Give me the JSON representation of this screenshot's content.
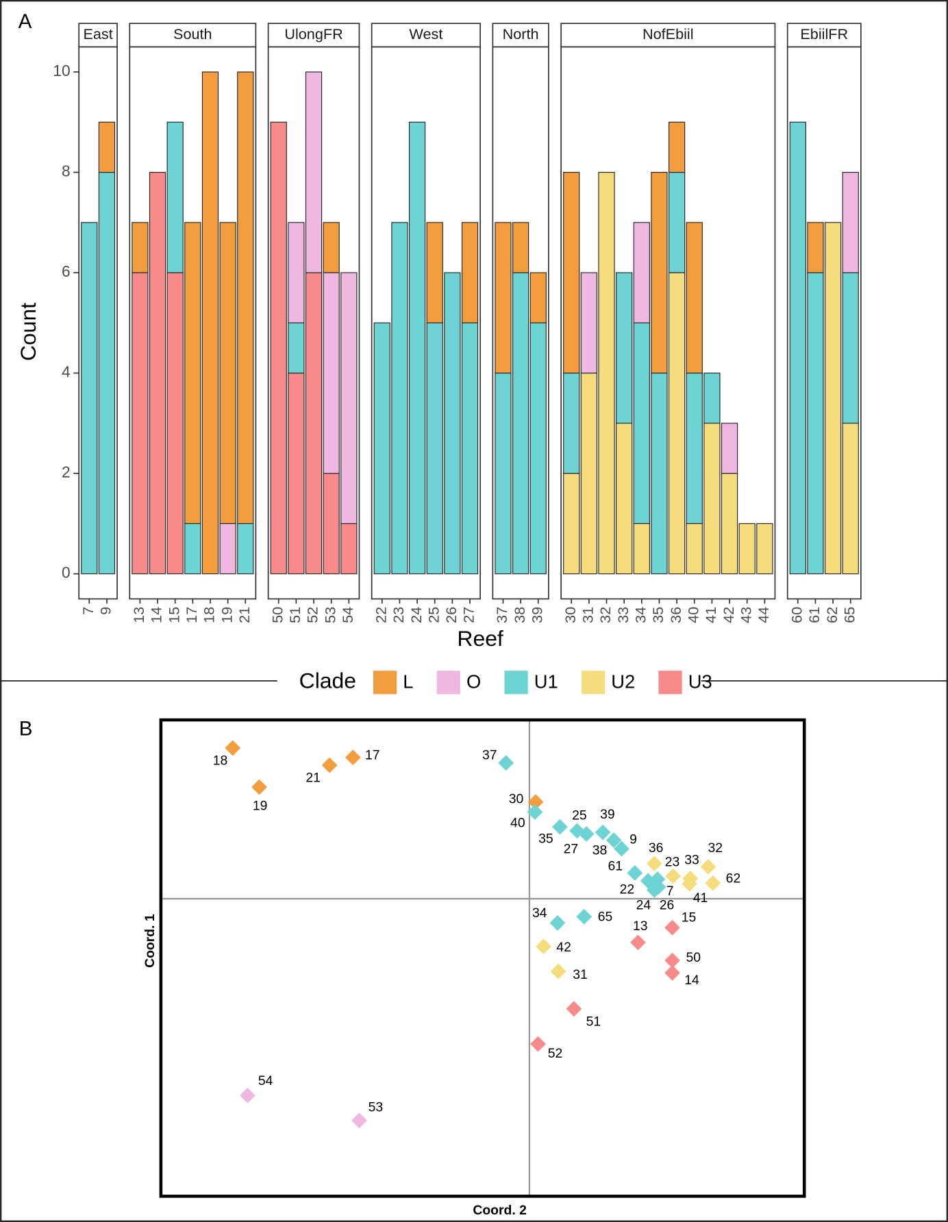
{
  "panel_labels": [
    "A",
    "B"
  ],
  "chart_data": [
    {
      "type": "bar",
      "stacked": true,
      "xlabel": "Reef",
      "ylabel": "Count",
      "legend_title": "Clade",
      "legend": "bottom",
      "ylim": [
        -0.5,
        10.5
      ],
      "yticks": [
        0,
        2,
        4,
        6,
        8,
        10
      ],
      "series": [
        {
          "name": "L",
          "color": "#f29e3f"
        },
        {
          "name": "O",
          "color": "#efb8e0"
        },
        {
          "name": "U1",
          "color": "#6dd3d3"
        },
        {
          "name": "U2",
          "color": "#f5dc7c"
        },
        {
          "name": "U3",
          "color": "#f88a8a"
        }
      ],
      "facets": [
        {
          "name": "East",
          "categories": [
            "7",
            "9"
          ],
          "values": [
            [
              0,
              1
            ],
            [
              0,
              0
            ],
            [
              7,
              8
            ],
            [
              0,
              0
            ],
            [
              0,
              0
            ]
          ]
        },
        {
          "name": "South",
          "categories": [
            "13",
            "14",
            "15",
            "17",
            "18",
            "19",
            "21"
          ],
          "values": [
            [
              1,
              0,
              0,
              6,
              10,
              6,
              9
            ],
            [
              0,
              0,
              0,
              0,
              0,
              1,
              0
            ],
            [
              0,
              0,
              3,
              1,
              0,
              0,
              1
            ],
            [
              0,
              0,
              0,
              0,
              0,
              0,
              0
            ],
            [
              6,
              8,
              6,
              0,
              0,
              0,
              0
            ]
          ]
        },
        {
          "name": "UlongFR",
          "categories": [
            "50",
            "51",
            "52",
            "53",
            "54"
          ],
          "values": [
            [
              0,
              0,
              0,
              1,
              0
            ],
            [
              0,
              2,
              4,
              4,
              5
            ],
            [
              0,
              1,
              0,
              0,
              0
            ],
            [
              0,
              0,
              0,
              0,
              0
            ],
            [
              9,
              4,
              6,
              2,
              1
            ]
          ]
        },
        {
          "name": "West",
          "categories": [
            "22",
            "23",
            "24",
            "25",
            "26",
            "27"
          ],
          "values": [
            [
              0,
              0,
              0,
              2,
              0,
              2
            ],
            [
              0,
              0,
              0,
              0,
              0,
              0
            ],
            [
              5,
              7,
              9,
              5,
              6,
              5
            ],
            [
              0,
              0,
              0,
              0,
              0,
              0
            ],
            [
              0,
              0,
              0,
              0,
              0,
              0
            ]
          ]
        },
        {
          "name": "North",
          "categories": [
            "37",
            "38",
            "39"
          ],
          "values": [
            [
              3,
              1,
              1
            ],
            [
              0,
              0,
              0
            ],
            [
              4,
              6,
              5
            ],
            [
              0,
              0,
              0
            ],
            [
              0,
              0,
              0
            ]
          ]
        },
        {
          "name": "NofEbiil",
          "categories": [
            "30",
            "31",
            "32",
            "33",
            "34",
            "35",
            "36",
            "40",
            "41",
            "42",
            "43",
            "44"
          ],
          "values": [
            [
              4,
              0,
              0,
              0,
              0,
              4,
              1,
              3,
              0,
              0,
              0,
              0
            ],
            [
              0,
              2,
              0,
              0,
              2,
              0,
              0,
              0,
              0,
              1,
              0,
              0
            ],
            [
              2,
              0,
              0,
              3,
              4,
              4,
              2,
              3,
              1,
              0,
              0,
              0
            ],
            [
              2,
              4,
              8,
              3,
              1,
              0,
              6,
              1,
              3,
              2,
              1,
              1
            ],
            [
              0,
              0,
              0,
              0,
              0,
              0,
              0,
              0,
              0,
              0,
              0,
              0
            ]
          ]
        },
        {
          "name": "EbiilFR",
          "categories": [
            "60",
            "61",
            "62",
            "65"
          ],
          "values": [
            [
              0,
              1,
              0,
              0
            ],
            [
              0,
              0,
              0,
              2
            ],
            [
              9,
              6,
              0,
              3
            ],
            [
              0,
              0,
              7,
              3
            ],
            [
              0,
              0,
              0,
              0
            ]
          ]
        }
      ]
    },
    {
      "type": "scatter",
      "xlabel": "Coord. 2",
      "ylabel": "Coord. 1",
      "xlim": [
        -4.72,
        3.52
      ],
      "ylim": [
        -3.81,
        2.29
      ],
      "series": [
        {
          "color": "#f29e3f",
          "labels": [
            "18",
            "19",
            "21",
            "17",
            "30"
          ],
          "x": [
            -3.8,
            -3.46,
            -2.56,
            -2.26,
            0.08
          ],
          "y": [
            1.93,
            1.43,
            1.71,
            1.81,
            1.24
          ]
        },
        {
          "color": "#6dd3d3",
          "labels": [
            "37",
            "40",
            "35",
            "27",
            "25",
            "39",
            "38",
            "9",
            "61",
            "22",
            "7",
            "24",
            "26",
            "34",
            "65"
          ],
          "x": [
            -0.3,
            0.07,
            0.39,
            0.61,
            0.73,
            0.94,
            1.08,
            1.18,
            1.35,
            1.52,
            1.64,
            1.6,
            1.65,
            0.36,
            0.7
          ],
          "y": [
            1.74,
            1.11,
            0.92,
            0.87,
            0.83,
            0.85,
            0.75,
            0.64,
            0.33,
            0.23,
            0.25,
            0.11,
            0.15,
            -0.31,
            -0.23
          ]
        },
        {
          "color": "#f5dc7c",
          "labels": [
            "36",
            "23",
            "33",
            "41",
            "32",
            "62",
            "42",
            "31"
          ],
          "x": [
            1.6,
            1.84,
            2.06,
            2.05,
            2.29,
            2.35,
            0.18,
            0.37
          ],
          "y": [
            0.45,
            0.29,
            0.26,
            0.19,
            0.41,
            0.2,
            -0.61,
            -0.93
          ]
        },
        {
          "color": "#f88a8a",
          "labels": [
            "15",
            "13",
            "50",
            "14",
            "51",
            "52"
          ],
          "x": [
            1.83,
            1.39,
            1.83,
            1.83,
            0.57,
            0.11
          ],
          "y": [
            -0.37,
            -0.56,
            -0.79,
            -0.95,
            -1.41,
            -1.86
          ]
        },
        {
          "color": "#efb8e0",
          "labels": [
            "54",
            "53"
          ],
          "x": [
            -3.61,
            -2.18
          ],
          "y": [
            -2.52,
            -2.84
          ]
        }
      ]
    }
  ]
}
